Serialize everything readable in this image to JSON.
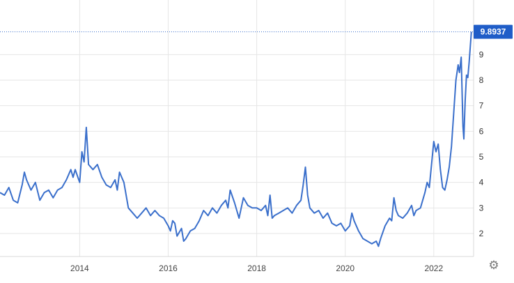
{
  "chart_data": {
    "type": "line",
    "title": "",
    "xlabel": "",
    "ylabel": "",
    "x_tick_labels": [
      "2014",
      "2016",
      "2018",
      "2020",
      "2022"
    ],
    "x_ticks": [
      2014,
      2016,
      2018,
      2020,
      2022
    ],
    "y_ticks": [
      2,
      3,
      4,
      5,
      6,
      7,
      8,
      9
    ],
    "y_tick_labels": [
      "2",
      "3",
      "4",
      "5",
      "6",
      "7",
      "8",
      "9"
    ],
    "xlim": [
      2012.2,
      2022.9
    ],
    "ylim": [
      1.1,
      10.7
    ],
    "grid": true,
    "last_value": 9.8937,
    "last_value_label": "9.8937",
    "series": [
      {
        "color": "#3a6fcb",
        "points": [
          [
            2012.2,
            3.6
          ],
          [
            2012.3,
            3.5
          ],
          [
            2012.4,
            3.8
          ],
          [
            2012.5,
            3.3
          ],
          [
            2012.6,
            3.2
          ],
          [
            2012.7,
            3.9
          ],
          [
            2012.75,
            4.4
          ],
          [
            2012.8,
            4.1
          ],
          [
            2012.9,
            3.7
          ],
          [
            2013.0,
            4.0
          ],
          [
            2013.1,
            3.3
          ],
          [
            2013.2,
            3.6
          ],
          [
            2013.3,
            3.7
          ],
          [
            2013.4,
            3.4
          ],
          [
            2013.5,
            3.7
          ],
          [
            2013.6,
            3.8
          ],
          [
            2013.7,
            4.1
          ],
          [
            2013.8,
            4.5
          ],
          [
            2013.85,
            4.2
          ],
          [
            2013.9,
            4.5
          ],
          [
            2014.0,
            4.0
          ],
          [
            2014.05,
            5.2
          ],
          [
            2014.1,
            4.8
          ],
          [
            2014.15,
            6.15
          ],
          [
            2014.2,
            4.7
          ],
          [
            2014.3,
            4.5
          ],
          [
            2014.4,
            4.7
          ],
          [
            2014.5,
            4.2
          ],
          [
            2014.6,
            3.9
          ],
          [
            2014.7,
            3.8
          ],
          [
            2014.8,
            4.1
          ],
          [
            2014.85,
            3.7
          ],
          [
            2014.9,
            4.4
          ],
          [
            2015.0,
            4.0
          ],
          [
            2015.1,
            3.0
          ],
          [
            2015.2,
            2.8
          ],
          [
            2015.3,
            2.6
          ],
          [
            2015.4,
            2.8
          ],
          [
            2015.5,
            3.0
          ],
          [
            2015.6,
            2.7
          ],
          [
            2015.7,
            2.9
          ],
          [
            2015.8,
            2.7
          ],
          [
            2015.9,
            2.6
          ],
          [
            2016.0,
            2.3
          ],
          [
            2016.05,
            2.1
          ],
          [
            2016.1,
            2.5
          ],
          [
            2016.15,
            2.4
          ],
          [
            2016.2,
            1.9
          ],
          [
            2016.3,
            2.2
          ],
          [
            2016.35,
            1.7
          ],
          [
            2016.4,
            1.8
          ],
          [
            2016.5,
            2.1
          ],
          [
            2016.6,
            2.2
          ],
          [
            2016.7,
            2.5
          ],
          [
            2016.8,
            2.9
          ],
          [
            2016.9,
            2.7
          ],
          [
            2017.0,
            3.0
          ],
          [
            2017.1,
            2.8
          ],
          [
            2017.2,
            3.1
          ],
          [
            2017.3,
            3.3
          ],
          [
            2017.35,
            3.0
          ],
          [
            2017.4,
            3.7
          ],
          [
            2017.5,
            3.2
          ],
          [
            2017.6,
            2.6
          ],
          [
            2017.7,
            3.4
          ],
          [
            2017.8,
            3.1
          ],
          [
            2017.9,
            3.0
          ],
          [
            2018.0,
            3.0
          ],
          [
            2018.1,
            2.9
          ],
          [
            2018.2,
            3.1
          ],
          [
            2018.25,
            2.7
          ],
          [
            2018.3,
            3.5
          ],
          [
            2018.35,
            2.6
          ],
          [
            2018.4,
            2.7
          ],
          [
            2018.5,
            2.8
          ],
          [
            2018.6,
            2.9
          ],
          [
            2018.7,
            3.0
          ],
          [
            2018.8,
            2.8
          ],
          [
            2018.9,
            3.1
          ],
          [
            2019.0,
            3.3
          ],
          [
            2019.05,
            3.9
          ],
          [
            2019.1,
            4.6
          ],
          [
            2019.15,
            3.5
          ],
          [
            2019.2,
            3.0
          ],
          [
            2019.3,
            2.8
          ],
          [
            2019.4,
            2.9
          ],
          [
            2019.5,
            2.6
          ],
          [
            2019.6,
            2.8
          ],
          [
            2019.7,
            2.4
          ],
          [
            2019.8,
            2.3
          ],
          [
            2019.9,
            2.4
          ],
          [
            2020.0,
            2.1
          ],
          [
            2020.1,
            2.3
          ],
          [
            2020.15,
            2.8
          ],
          [
            2020.2,
            2.5
          ],
          [
            2020.3,
            2.1
          ],
          [
            2020.4,
            1.8
          ],
          [
            2020.5,
            1.7
          ],
          [
            2020.6,
            1.6
          ],
          [
            2020.7,
            1.7
          ],
          [
            2020.75,
            1.5
          ],
          [
            2020.8,
            1.8
          ],
          [
            2020.9,
            2.3
          ],
          [
            2021.0,
            2.6
          ],
          [
            2021.05,
            2.5
          ],
          [
            2021.1,
            3.4
          ],
          [
            2021.15,
            2.9
          ],
          [
            2021.2,
            2.7
          ],
          [
            2021.3,
            2.6
          ],
          [
            2021.4,
            2.8
          ],
          [
            2021.5,
            3.1
          ],
          [
            2021.55,
            2.7
          ],
          [
            2021.6,
            2.9
          ],
          [
            2021.7,
            3.0
          ],
          [
            2021.8,
            3.6
          ],
          [
            2021.85,
            4.0
          ],
          [
            2021.9,
            3.8
          ],
          [
            2022.0,
            5.6
          ],
          [
            2022.05,
            5.2
          ],
          [
            2022.1,
            5.5
          ],
          [
            2022.15,
            4.5
          ],
          [
            2022.2,
            3.8
          ],
          [
            2022.25,
            3.7
          ],
          [
            2022.3,
            4.1
          ],
          [
            2022.35,
            4.6
          ],
          [
            2022.4,
            5.4
          ],
          [
            2022.45,
            6.7
          ],
          [
            2022.5,
            8.0
          ],
          [
            2022.55,
            8.6
          ],
          [
            2022.58,
            8.3
          ],
          [
            2022.62,
            8.9
          ],
          [
            2022.66,
            6.2
          ],
          [
            2022.68,
            5.7
          ],
          [
            2022.71,
            7.2
          ],
          [
            2022.74,
            8.2
          ],
          [
            2022.77,
            8.1
          ],
          [
            2022.8,
            8.7
          ],
          [
            2022.85,
            9.8937
          ]
        ]
      }
    ]
  },
  "controls": {
    "settings_icon": "gear-icon",
    "settings_glyph": "⚙"
  }
}
